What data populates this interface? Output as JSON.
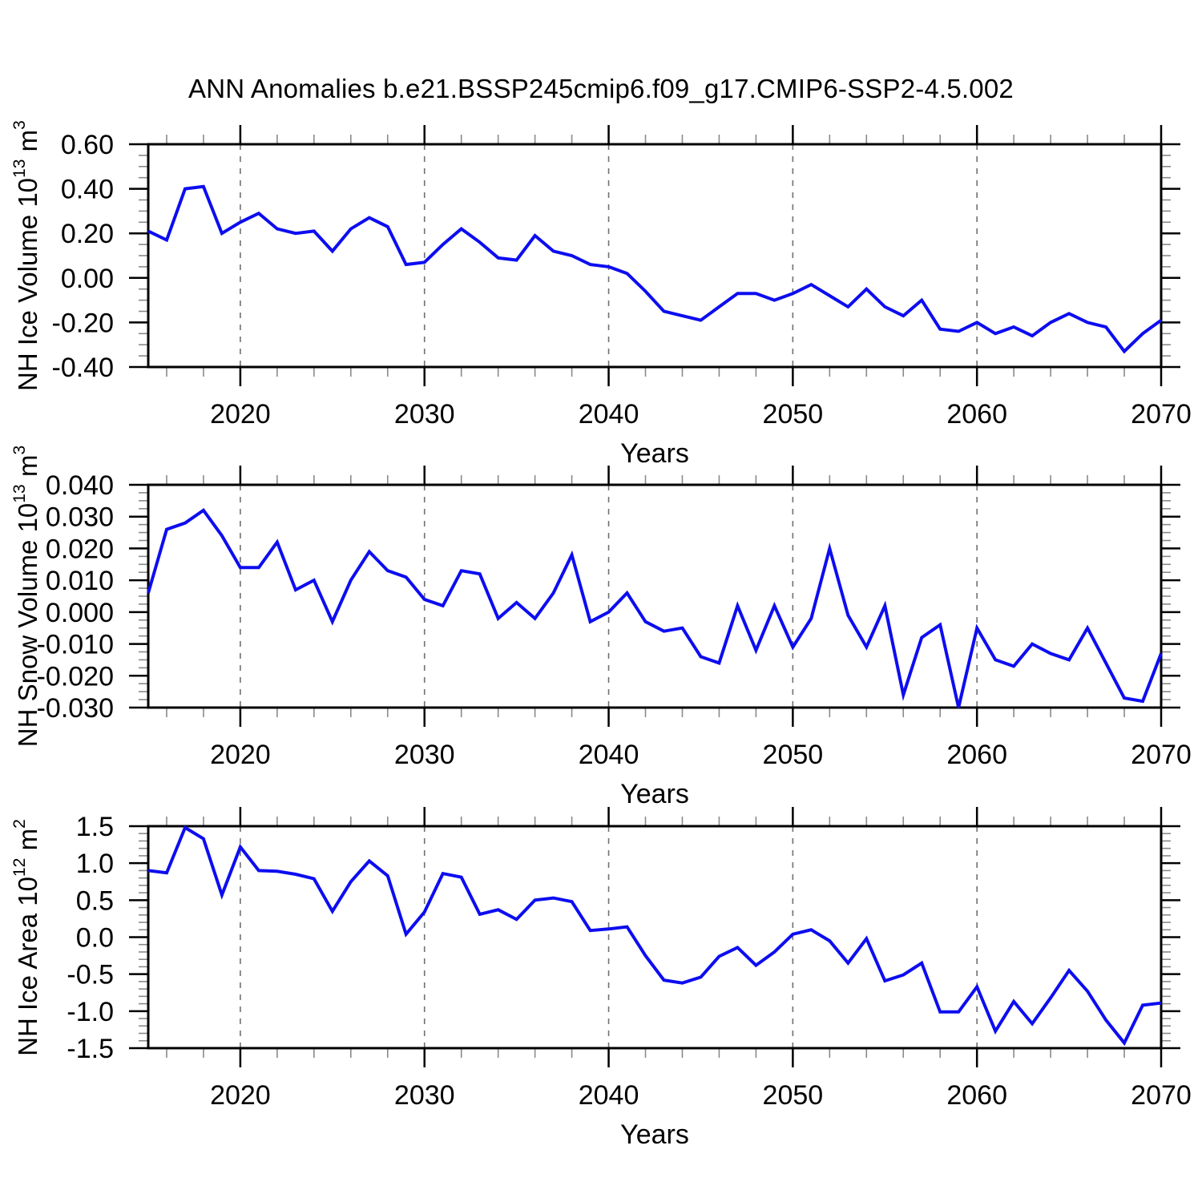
{
  "chart_data": {
    "type": "line",
    "title": "ANN Anomalies b.e21.BSSP245cmip6.f09_g17.CMIP6-SSP2-4.5.002",
    "line_color": "#0d0df0",
    "x": [
      2015,
      2016,
      2017,
      2018,
      2019,
      2020,
      2021,
      2022,
      2023,
      2024,
      2025,
      2026,
      2027,
      2028,
      2029,
      2030,
      2031,
      2032,
      2033,
      2034,
      2035,
      2036,
      2037,
      2038,
      2039,
      2040,
      2041,
      2042,
      2043,
      2044,
      2045,
      2046,
      2047,
      2048,
      2049,
      2050,
      2051,
      2052,
      2053,
      2054,
      2055,
      2056,
      2057,
      2058,
      2059,
      2060,
      2061,
      2062,
      2063,
      2064,
      2065,
      2066,
      2067,
      2068,
      2069,
      2070
    ],
    "x_axis": {
      "label": "Years",
      "range": [
        2015,
        2070
      ],
      "major_ticks": [
        2020,
        2030,
        2040,
        2050,
        2060,
        2070
      ],
      "major_tick_labels": [
        "2020",
        "2030",
        "2040",
        "2050",
        "2060",
        "2070"
      ],
      "minor_step": 2,
      "gridline_ticks": [
        2020,
        2030,
        2040,
        2050,
        2060
      ]
    },
    "panels": [
      {
        "name": "nh-ice-volume",
        "ylabel": {
          "base": "NH Ice Volume 10",
          "sup1": "13",
          "mid": " m",
          "sup2": "3"
        },
        "ylim": [
          -0.4,
          0.6
        ],
        "yminor_step": 0.05,
        "yticks": [
          {
            "v": 0.6,
            "label": "0.60"
          },
          {
            "v": 0.4,
            "label": "0.40"
          },
          {
            "v": 0.2,
            "label": "0.20"
          },
          {
            "v": 0.0,
            "label": "0.00"
          },
          {
            "v": -0.2,
            "label": "-0.20"
          },
          {
            "v": -0.4,
            "label": "-0.40"
          }
        ],
        "values": [
          0.21,
          0.17,
          0.4,
          0.41,
          0.2,
          0.25,
          0.29,
          0.22,
          0.2,
          0.21,
          0.12,
          0.22,
          0.27,
          0.23,
          0.06,
          0.07,
          0.15,
          0.22,
          0.16,
          0.09,
          0.08,
          0.19,
          0.12,
          0.1,
          0.06,
          0.05,
          0.02,
          -0.06,
          -0.15,
          -0.17,
          -0.19,
          -0.13,
          -0.07,
          -0.07,
          -0.1,
          -0.07,
          -0.03,
          -0.08,
          -0.13,
          -0.05,
          -0.13,
          -0.17,
          -0.1,
          -0.23,
          -0.24,
          -0.2,
          -0.25,
          -0.22,
          -0.26,
          -0.2,
          -0.16,
          -0.2,
          -0.22,
          -0.33,
          -0.25,
          -0.19
        ]
      },
      {
        "name": "nh-snow-volume",
        "ylabel": {
          "base": "NH Snow Volume 10",
          "sup1": "13",
          "mid": " m",
          "sup2": "3"
        },
        "ylim": [
          -0.03,
          0.04
        ],
        "yminor_step": 0.0025,
        "yticks": [
          {
            "v": 0.04,
            "label": "0.040"
          },
          {
            "v": 0.03,
            "label": "0.030"
          },
          {
            "v": 0.02,
            "label": "0.020"
          },
          {
            "v": 0.01,
            "label": "0.010"
          },
          {
            "v": 0.0,
            "label": "0.000"
          },
          {
            "v": -0.01,
            "label": "-0.010"
          },
          {
            "v": -0.02,
            "label": "-0.020"
          },
          {
            "v": -0.03,
            "label": "-0.030"
          }
        ],
        "values": [
          0.006,
          0.026,
          0.028,
          0.032,
          0.024,
          0.014,
          0.014,
          0.022,
          0.007,
          0.01,
          -0.003,
          0.01,
          0.019,
          0.013,
          0.011,
          0.004,
          0.002,
          0.013,
          0.012,
          -0.002,
          0.003,
          -0.002,
          0.006,
          0.018,
          -0.003,
          0.0,
          0.006,
          -0.003,
          -0.006,
          -0.005,
          -0.014,
          -0.016,
          0.002,
          -0.012,
          0.002,
          -0.011,
          -0.002,
          0.02,
          -0.001,
          -0.011,
          0.002,
          -0.026,
          -0.008,
          -0.004,
          -0.03,
          -0.005,
          -0.015,
          -0.017,
          -0.01,
          -0.013,
          -0.015,
          -0.005,
          -0.016,
          -0.027,
          -0.028,
          -0.013
        ]
      },
      {
        "name": "nh-ice-area",
        "ylabel": {
          "base": "NH Ice Area 10",
          "sup1": "12",
          "mid": " m",
          "sup2": "2"
        },
        "ylim": [
          -1.5,
          1.5
        ],
        "yminor_step": 0.1,
        "yticks": [
          {
            "v": 1.5,
            "label": "1.5"
          },
          {
            "v": 1.0,
            "label": "1.0"
          },
          {
            "v": 0.5,
            "label": "0.5"
          },
          {
            "v": 0.0,
            "label": "0.0"
          },
          {
            "v": -0.5,
            "label": "-0.5"
          },
          {
            "v": -1.0,
            "label": "-1.0"
          },
          {
            "v": -1.5,
            "label": "-1.5"
          }
        ],
        "values": [
          0.9,
          0.87,
          1.48,
          1.33,
          0.57,
          1.22,
          0.9,
          0.89,
          0.85,
          0.79,
          0.35,
          0.75,
          1.03,
          0.83,
          0.04,
          0.34,
          0.86,
          0.81,
          0.31,
          0.37,
          0.24,
          0.5,
          0.53,
          0.48,
          0.09,
          0.11,
          0.14,
          -0.25,
          -0.58,
          -0.62,
          -0.54,
          -0.26,
          -0.14,
          -0.38,
          -0.2,
          0.04,
          0.1,
          -0.05,
          -0.35,
          -0.02,
          -0.59,
          -0.51,
          -0.35,
          -1.01,
          -1.01,
          -0.67,
          -1.27,
          -0.87,
          -1.17,
          -0.82,
          -0.45,
          -0.73,
          -1.12,
          -1.43,
          -0.92,
          -0.89
        ]
      }
    ]
  }
}
